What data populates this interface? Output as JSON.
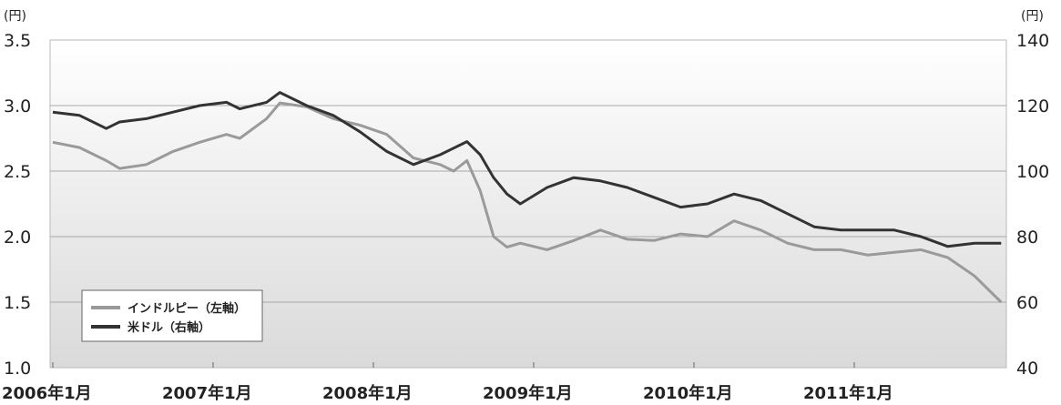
{
  "chart_data": {
    "type": "line",
    "title": "",
    "y_left": {
      "unit": "(円)",
      "ylim": [
        1.0,
        3.5
      ],
      "ticks": [
        "1.0",
        "1.5",
        "2.0",
        "2.5",
        "3.0",
        "3.5"
      ]
    },
    "y_right": {
      "unit": "(円)",
      "ylim": [
        40,
        140
      ],
      "ticks": [
        "40",
        "60",
        "80",
        "100",
        "120",
        "140"
      ]
    },
    "x_ticks": [
      "2006年1月",
      "2007年1月",
      "2008年1月",
      "2009年1月",
      "2010年1月",
      "2011年1月"
    ],
    "x_range": [
      "2006-01",
      "2011-12"
    ],
    "grid": true,
    "legend_position": "bottom-left",
    "colors": {
      "inr": "#9a9a9a",
      "usd": "#333333"
    },
    "series": [
      {
        "name": "インドルピー（左軸）",
        "axis": "left",
        "x": [
          "2006-01",
          "2006-03",
          "2006-05",
          "2006-06",
          "2006-08",
          "2006-10",
          "2006-12",
          "2007-02",
          "2007-03",
          "2007-05",
          "2007-06",
          "2007-08",
          "2007-10",
          "2007-12",
          "2008-02",
          "2008-04",
          "2008-06",
          "2008-07",
          "2008-08",
          "2008-09",
          "2008-10",
          "2008-11",
          "2008-12",
          "2009-02",
          "2009-04",
          "2009-06",
          "2009-08",
          "2009-10",
          "2009-12",
          "2010-02",
          "2010-04",
          "2010-06",
          "2010-08",
          "2010-10",
          "2010-12",
          "2011-02",
          "2011-04",
          "2011-06",
          "2011-08",
          "2011-10",
          "2011-12"
        ],
        "values": [
          2.72,
          2.68,
          2.58,
          2.52,
          2.55,
          2.65,
          2.72,
          2.78,
          2.75,
          2.9,
          3.02,
          2.99,
          2.9,
          2.85,
          2.78,
          2.6,
          2.55,
          2.5,
          2.58,
          2.35,
          2.0,
          1.92,
          1.95,
          1.9,
          1.97,
          2.05,
          1.98,
          1.97,
          2.02,
          2.0,
          2.12,
          2.05,
          1.95,
          1.9,
          1.9,
          1.86,
          1.88,
          1.9,
          1.84,
          1.7,
          1.5
        ]
      },
      {
        "name": "米ドル（右軸）",
        "axis": "right",
        "x": [
          "2006-01",
          "2006-03",
          "2006-05",
          "2006-06",
          "2006-08",
          "2006-10",
          "2006-12",
          "2007-02",
          "2007-03",
          "2007-05",
          "2007-06",
          "2007-08",
          "2007-10",
          "2007-12",
          "2008-02",
          "2008-04",
          "2008-06",
          "2008-07",
          "2008-08",
          "2008-09",
          "2008-10",
          "2008-11",
          "2008-12",
          "2009-02",
          "2009-04",
          "2009-06",
          "2009-08",
          "2009-10",
          "2009-12",
          "2010-02",
          "2010-04",
          "2010-06",
          "2010-08",
          "2010-10",
          "2010-12",
          "2011-02",
          "2011-04",
          "2011-06",
          "2011-08",
          "2011-10",
          "2011-12"
        ],
        "values": [
          118,
          117,
          113,
          115,
          116,
          118,
          120,
          121,
          119,
          121,
          124,
          120,
          117,
          112,
          106,
          102,
          105,
          107,
          109,
          105,
          98,
          93,
          90,
          95,
          98,
          97,
          95,
          92,
          89,
          90,
          93,
          91,
          87,
          83,
          82,
          82,
          82,
          80,
          77,
          78,
          78
        ]
      }
    ]
  }
}
